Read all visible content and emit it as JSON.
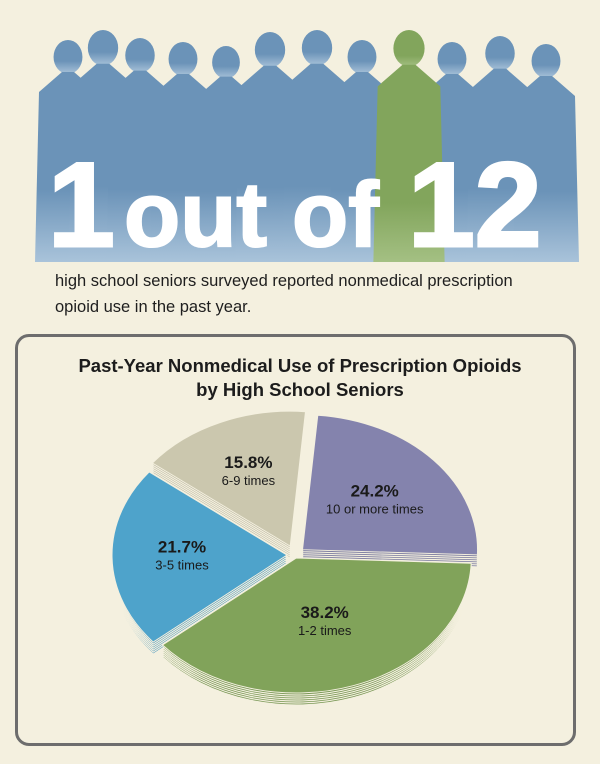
{
  "hero": {
    "number_a": "1",
    "word_out": "out",
    "word_of": "of",
    "number_b": "12"
  },
  "tagline": "high school seniors surveyed reported nonmedical prescription opioid use in the past year.",
  "colors": {
    "silhouette_blue": "#6b93b8",
    "silhouette_green": "#80a35a",
    "background": "#f4f0df"
  },
  "chart_data": {
    "type": "pie",
    "title_lines": [
      "Past-Year Nonmedical Use of Prescription Opioids",
      "by High School Seniors"
    ],
    "slices": [
      {
        "label": "10 or more times",
        "value": 24.2,
        "display": "24.2%",
        "color": "#8483ad"
      },
      {
        "label": "1-2 times",
        "value": 38.2,
        "display": "38.2%",
        "color": "#81a35a"
      },
      {
        "label": "3-5 times",
        "value": 21.7,
        "display": "21.7%",
        "color": "#4ea3cb"
      },
      {
        "label": "6-9 times",
        "value": 15.8,
        "display": "15.8%",
        "color": "#cbc7ae"
      }
    ]
  }
}
